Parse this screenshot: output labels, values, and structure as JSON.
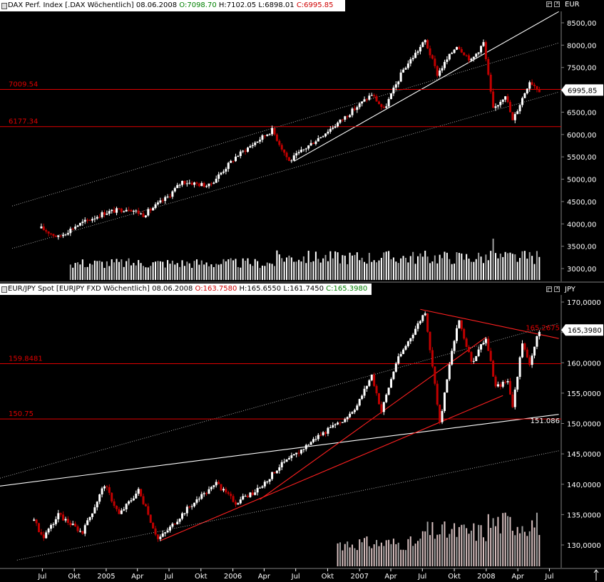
{
  "panels": {
    "dax": {
      "icon": "window-icon",
      "name": "DAX Perf. Index [.DAX  Wöchentlich]",
      "date": "08.06.2008",
      "open": "O:7098.70",
      "high": "H:7102.05",
      "low": "L:6898.01",
      "close": "C:6995.85",
      "currency": "EUR",
      "price_tag": "6995,85"
    },
    "eurjpy": {
      "icon": "window-icon",
      "name": "EUR/JPY Spot [EURJPY FXD  Wöchentlich]",
      "date": "08.06.2008",
      "open": "O:163.7580",
      "high": "H:165.6550",
      "low": "L:161.7450",
      "close": "C:165.3980",
      "currency": "JPY",
      "price_tag": "165,3980"
    }
  },
  "colors": {
    "background": "#000000",
    "level_line": "#e00000",
    "trend_white": "#ffffff",
    "trend_red": "#ff2020",
    "candle_up": "#ffffff",
    "candle_down": "#c00000",
    "volume_dax": "#ffffff",
    "volume_fx": "#d8c0c0"
  },
  "chart_data": [
    {
      "type": "candlestick",
      "title": "DAX Perf. Index [.DAX  Wöchentlich]",
      "ylabel": "EUR",
      "ylim": [
        2800,
        8800
      ],
      "y_ticks": [
        "8500,00",
        "8000,00",
        "7500,00",
        "7000,00",
        "6500,00",
        "6000,00",
        "5500,00",
        "5000,00",
        "4500,00",
        "4000,00",
        "3500,00",
        "3000,00"
      ],
      "y_tick_values": [
        8500,
        8000,
        7500,
        7000,
        6500,
        6000,
        5500,
        5000,
        4500,
        4000,
        3500,
        3000
      ],
      "horizontal_levels": [
        {
          "label": "7009.54",
          "value": 7009.54
        },
        {
          "label": "6177.34",
          "value": 6177.34
        }
      ],
      "last_close": 6995.85,
      "anchors": [
        [
          "2004-06-28",
          3900
        ],
        [
          "2004-08-16",
          3700
        ],
        [
          "2004-10-04",
          3950
        ],
        [
          "2004-12-27",
          4250
        ],
        [
          "2005-03-07",
          4350
        ],
        [
          "2005-04-18",
          4200
        ],
        [
          "2005-06-27",
          4600
        ],
        [
          "2005-08-08",
          4950
        ],
        [
          "2005-10-24",
          4850
        ],
        [
          "2006-01-09",
          5500
        ],
        [
          "2006-04-24",
          6100
        ],
        [
          "2006-06-12",
          5400
        ],
        [
          "2006-08-07",
          5750
        ],
        [
          "2006-11-06",
          6300
        ],
        [
          "2007-02-05",
          6900
        ],
        [
          "2007-03-12",
          6550
        ],
        [
          "2007-05-07",
          7450
        ],
        [
          "2007-07-09",
          8100
        ],
        [
          "2007-08-13",
          7350
        ],
        [
          "2007-10-08",
          8000
        ],
        [
          "2007-11-19",
          7650
        ],
        [
          "2007-12-24",
          8050
        ],
        [
          "2008-01-21",
          6550
        ],
        [
          "2008-02-25",
          6900
        ],
        [
          "2008-03-17",
          6300
        ],
        [
          "2008-05-05",
          7200
        ],
        [
          "2008-06-02",
          6996
        ]
      ],
      "trendlines": [
        {
          "from": [
            "2006-06-26",
            5400
          ],
          "to": [
            "2008-07-28",
            8750
          ],
          "style": "solid"
        },
        {
          "from": [
            "2004-04-05",
            4400
          ],
          "to": [
            "2008-07-28",
            8050
          ],
          "style": "dotted"
        },
        {
          "from": [
            "2004-04-05",
            3450
          ],
          "to": [
            "2008-07-28",
            6950
          ],
          "style": "dotted"
        }
      ],
      "volume_range": [
        2800,
        3950
      ]
    },
    {
      "type": "candlestick",
      "title": "EUR/JPY Spot [EURJPY FXD  Wöchentlich]",
      "ylabel": "JPY",
      "ylim": [
        127.5,
        172
      ],
      "y_ticks": [
        "170,0000",
        "165,0000",
        "160,0000",
        "155,0000",
        "150,0000",
        "145,0000",
        "140,0000",
        "135,0000",
        "130,0000"
      ],
      "y_tick_values": [
        170,
        165,
        160,
        155,
        150,
        145,
        140,
        135,
        130
      ],
      "horizontal_levels": [
        {
          "label": "159.8481",
          "value": 159.8481
        },
        {
          "label": "150.75",
          "value": 150.75
        }
      ],
      "trend_labels": [
        {
          "label": "165.2675",
          "value": 165.2675
        },
        {
          "label": "151.086",
          "value": 151.086
        }
      ],
      "last_close": 165.398,
      "anchors": [
        [
          "2004-06-07",
          134
        ],
        [
          "2004-07-05",
          131
        ],
        [
          "2004-08-16",
          135
        ],
        [
          "2004-10-25",
          132
        ],
        [
          "2004-12-27",
          140
        ],
        [
          "2005-02-07",
          135
        ],
        [
          "2005-04-04",
          139
        ],
        [
          "2005-05-30",
          131
        ],
        [
          "2005-06-20",
          132
        ],
        [
          "2005-08-22",
          136
        ],
        [
          "2005-11-14",
          140
        ],
        [
          "2006-01-09",
          137
        ],
        [
          "2006-03-13",
          139
        ],
        [
          "2006-05-15",
          143
        ],
        [
          "2006-07-03",
          145
        ],
        [
          "2006-09-04",
          148
        ],
        [
          "2006-11-06",
          150
        ],
        [
          "2006-12-25",
          153
        ],
        [
          "2007-02-05",
          158
        ],
        [
          "2007-03-05",
          152
        ],
        [
          "2007-04-16",
          160
        ],
        [
          "2007-07-09",
          168.5
        ],
        [
          "2007-08-20",
          150
        ],
        [
          "2007-09-24",
          162
        ],
        [
          "2007-10-15",
          167
        ],
        [
          "2007-11-19",
          160
        ],
        [
          "2007-12-31",
          164
        ],
        [
          "2008-01-28",
          156
        ],
        [
          "2008-03-03",
          157
        ],
        [
          "2008-03-17",
          153
        ],
        [
          "2008-04-14",
          163
        ],
        [
          "2008-05-05",
          160
        ],
        [
          "2008-06-02",
          165.4
        ]
      ],
      "trendlines": [
        {
          "from": [
            "2004-03-01",
            139.7
          ],
          "to": [
            "2008-07-28",
            151.5
          ],
          "style": "solid",
          "color": "white"
        },
        {
          "from": [
            "2007-06-25",
            168.8
          ],
          "to": [
            "2008-07-28",
            164.0
          ],
          "style": "solid",
          "color": "red"
        },
        {
          "from": [
            "2006-03-20",
            137.5
          ],
          "to": [
            "2007-12-31",
            164.2
          ],
          "style": "solid",
          "color": "red"
        },
        {
          "from": [
            "2005-06-06",
            130.7
          ],
          "to": [
            "2008-02-18",
            154.6
          ],
          "style": "solid",
          "color": "red"
        },
        {
          "from": [
            "2004-03-01",
            141.0
          ],
          "to": [
            "2008-07-28",
            166.5
          ],
          "style": "dotted"
        },
        {
          "from": [
            "2004-04-19",
            127.5
          ],
          "to": [
            "2008-07-28",
            145.5
          ],
          "style": "dotted"
        }
      ],
      "volume_start": "2006-10-30"
    }
  ],
  "x_axis": {
    "ticks": [
      {
        "label": "Jul",
        "date": "2004-07-01"
      },
      {
        "label": "Okt",
        "date": "2004-10-01"
      },
      {
        "label": "2005",
        "date": "2005-01-01"
      },
      {
        "label": "Apr",
        "date": "2005-04-01"
      },
      {
        "label": "Jul",
        "date": "2005-07-01"
      },
      {
        "label": "Okt",
        "date": "2005-10-01"
      },
      {
        "label": "2006",
        "date": "2006-01-01"
      },
      {
        "label": "Apr",
        "date": "2006-04-01"
      },
      {
        "label": "Jul",
        "date": "2006-07-01"
      },
      {
        "label": "Okt",
        "date": "2006-10-01"
      },
      {
        "label": "2007",
        "date": "2007-01-01"
      },
      {
        "label": "Apr",
        "date": "2007-04-01"
      },
      {
        "label": "Jul",
        "date": "2007-07-01"
      },
      {
        "label": "Okt",
        "date": "2007-10-01"
      },
      {
        "label": "2008",
        "date": "2008-01-01"
      },
      {
        "label": "Apr",
        "date": "2008-04-01"
      },
      {
        "label": "Jul",
        "date": "2008-07-01"
      }
    ],
    "date_range": [
      "2004-03-01",
      "2008-08-04"
    ]
  }
}
